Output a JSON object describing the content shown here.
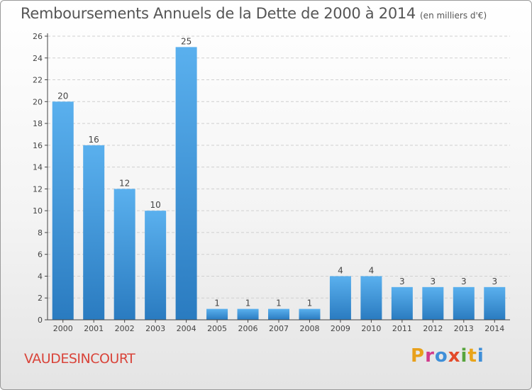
{
  "header": {
    "title": "Remboursements Annuels de la Dette de 2000 à 2014",
    "unit": "(en milliers d'€)"
  },
  "footer": {
    "commune": "VAUDESINCOURT",
    "logo_letters": [
      "P",
      "r",
      "o",
      "x",
      "i",
      "t",
      "i"
    ],
    "logo_colors": [
      "#e8a01b",
      "#d03a8c",
      "#3f8fd8",
      "#e34a2a",
      "#56a43d",
      "#e9a51b",
      "#3f8fd8"
    ]
  },
  "colors": {
    "bar_light": "#5ab0ee",
    "bar_dark": "#2a7bc0",
    "grid": "#d0d0d0",
    "axis": "#444444",
    "text": "#444444",
    "commune": "#d9443a"
  },
  "chart_data": {
    "type": "bar",
    "categories": [
      "2000",
      "2001",
      "2002",
      "2003",
      "2004",
      "2005",
      "2006",
      "2007",
      "2008",
      "2009",
      "2010",
      "2011",
      "2012",
      "2013",
      "2014"
    ],
    "values": [
      20,
      16,
      12,
      10,
      25,
      1,
      1,
      1,
      1,
      4,
      4,
      3,
      3,
      3,
      3
    ],
    "data_labels": [
      "20",
      "16",
      "12",
      "10",
      "25",
      "1",
      "1",
      "1",
      "1",
      "4",
      "4",
      "3",
      "3",
      "3",
      "3"
    ],
    "ylim": [
      0,
      26
    ],
    "yticks": [
      0,
      2,
      4,
      6,
      8,
      10,
      12,
      14,
      16,
      18,
      20,
      22,
      24,
      26
    ],
    "grid": true,
    "xlabel": "",
    "ylabel": ""
  }
}
